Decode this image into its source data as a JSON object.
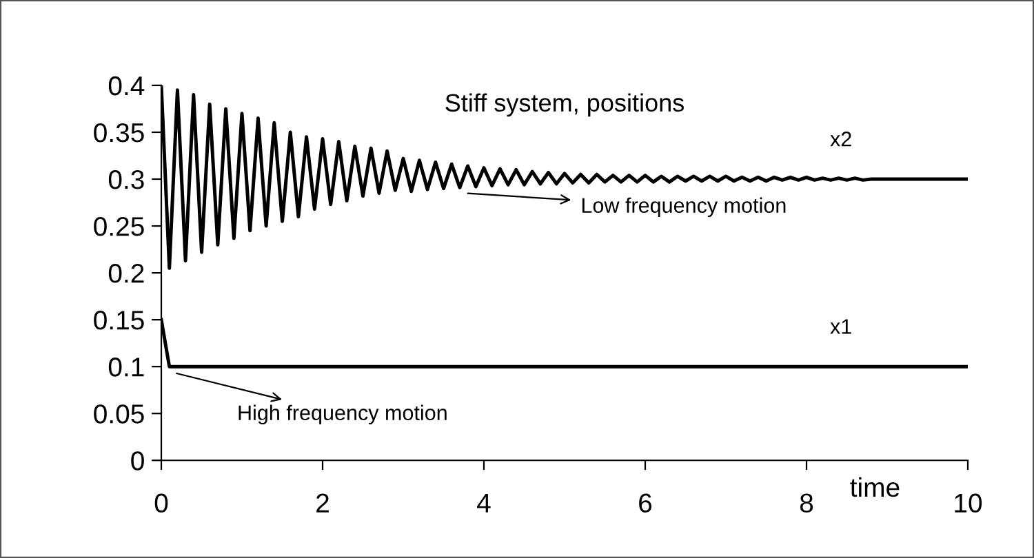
{
  "chart_data": {
    "type": "line",
    "title": "Stiff system, positions",
    "xlabel": "time",
    "xlim": [
      0,
      10
    ],
    "xticks": [
      0,
      2,
      4,
      6,
      8,
      10
    ],
    "ylim": [
      0,
      0.4
    ],
    "yticks": [
      0,
      0.05,
      0.1,
      0.15,
      0.2,
      0.25,
      0.3,
      0.35,
      0.4
    ],
    "grid": false,
    "legend": false,
    "marker": "none",
    "line_style": "solid",
    "color": "#000000",
    "series": [
      {
        "name": "x2",
        "x": [
          0,
          0.1,
          0.2,
          0.3,
          0.4,
          0.5,
          0.6,
          0.7,
          0.8,
          0.9,
          1.0,
          1.1,
          1.2,
          1.3,
          1.4,
          1.5,
          1.6,
          1.7,
          1.8,
          1.9,
          2.0,
          2.1,
          2.2,
          2.3,
          2.4,
          2.5,
          2.6,
          2.7,
          2.8,
          2.9,
          3.0,
          3.1,
          3.2,
          3.3,
          3.4,
          3.5,
          3.6,
          3.7,
          3.8,
          3.9,
          4.0,
          4.1,
          4.2,
          4.3,
          4.4,
          4.5,
          4.6,
          4.7,
          4.8,
          4.9,
          5.0,
          5.1,
          5.2,
          5.3,
          5.4,
          5.5,
          5.6,
          5.7,
          5.8,
          5.9,
          6.0,
          6.1,
          6.2,
          6.3,
          6.4,
          6.5,
          6.6,
          6.7,
          6.8,
          6.9,
          7.0,
          7.1,
          7.2,
          7.3,
          7.4,
          7.5,
          7.6,
          7.7,
          7.8,
          7.9,
          8.0,
          8.1,
          8.2,
          8.3,
          8.4,
          8.5,
          8.6,
          8.7,
          8.8,
          10
        ],
        "values": [
          0.4,
          0.205,
          0.395,
          0.213,
          0.39,
          0.222,
          0.38,
          0.23,
          0.375,
          0.237,
          0.37,
          0.245,
          0.365,
          0.25,
          0.36,
          0.255,
          0.35,
          0.26,
          0.345,
          0.268,
          0.343,
          0.273,
          0.34,
          0.277,
          0.335,
          0.282,
          0.333,
          0.285,
          0.33,
          0.288,
          0.322,
          0.287,
          0.32,
          0.289,
          0.318,
          0.29,
          0.316,
          0.291,
          0.314,
          0.292,
          0.312,
          0.293,
          0.311,
          0.294,
          0.31,
          0.294,
          0.308,
          0.295,
          0.307,
          0.295,
          0.306,
          0.296,
          0.305,
          0.296,
          0.305,
          0.297,
          0.304,
          0.297,
          0.304,
          0.297,
          0.304,
          0.297,
          0.303,
          0.297,
          0.303,
          0.298,
          0.303,
          0.298,
          0.303,
          0.298,
          0.303,
          0.298,
          0.302,
          0.298,
          0.302,
          0.298,
          0.302,
          0.299,
          0.302,
          0.299,
          0.302,
          0.299,
          0.301,
          0.299,
          0.301,
          0.299,
          0.301,
          0.299,
          0.3,
          0.3
        ]
      },
      {
        "name": "x1",
        "x": [
          0,
          0.1,
          10
        ],
        "values": [
          0.15,
          0.1,
          0.1
        ]
      }
    ],
    "annotations": [
      "Low frequency motion",
      "High frequency motion"
    ]
  }
}
